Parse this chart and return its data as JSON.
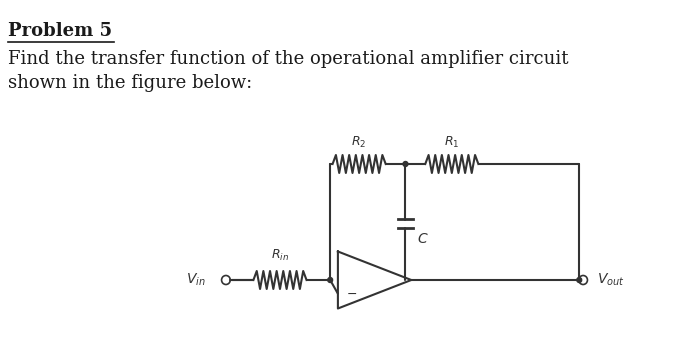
{
  "title": "Problem 5",
  "body_text": "Find the transfer function of the operational amplifier circuit\nshown in the figure below:",
  "bg_color": "#ffffff",
  "text_color": "#1a1a1a",
  "title_fontsize": 13,
  "body_fontsize": 13,
  "circuit": {
    "vin_label": "$V_{in}$",
    "vout_label": "$V_{out}$",
    "rin_label": "$R_{in}$",
    "r2_label": "$R_2$",
    "r1_label": "$R_1$",
    "c_label": "$C$"
  }
}
